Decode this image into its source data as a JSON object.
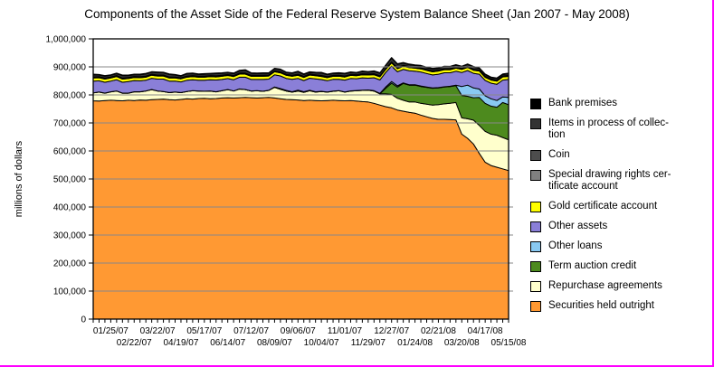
{
  "page": {
    "background": "#ffffff",
    "frame_border_color": "#ff00ff"
  },
  "chart_data": {
    "type": "area",
    "stacked": true,
    "title": "Components of the Asset Side of the Federal Reserve System Balance Sheet (Jan 2007 - May 2008)",
    "ylabel": "millions of dollars",
    "ylim": [
      0,
      1000000
    ],
    "ytick_step": 100000,
    "grid": true,
    "legend_position": "right",
    "x_tick_label_start": 3,
    "x_tick_label_every": 4,
    "x": [
      "01/04/07",
      "01/11/07",
      "01/18/07",
      "01/25/07",
      "02/01/07",
      "02/08/07",
      "02/15/07",
      "02/22/07",
      "03/01/07",
      "03/08/07",
      "03/15/07",
      "03/22/07",
      "03/29/07",
      "04/05/07",
      "04/12/07",
      "04/19/07",
      "04/26/07",
      "05/03/07",
      "05/10/07",
      "05/17/07",
      "05/24/07",
      "05/31/07",
      "06/07/07",
      "06/14/07",
      "06/21/07",
      "06/28/07",
      "07/05/07",
      "07/12/07",
      "07/19/07",
      "07/26/07",
      "08/02/07",
      "08/09/07",
      "08/16/07",
      "08/23/07",
      "08/30/07",
      "09/06/07",
      "09/13/07",
      "09/20/07",
      "09/27/07",
      "10/04/07",
      "10/11/07",
      "10/18/07",
      "10/25/07",
      "11/01/07",
      "11/08/07",
      "11/15/07",
      "11/22/07",
      "11/29/07",
      "12/06/07",
      "12/13/07",
      "12/20/07",
      "12/27/07",
      "01/03/08",
      "01/10/08",
      "01/17/08",
      "01/24/08",
      "01/31/08",
      "02/07/08",
      "02/14/08",
      "02/21/08",
      "02/28/08",
      "03/06/08",
      "03/13/08",
      "03/20/08",
      "03/27/08",
      "04/03/08",
      "04/10/08",
      "04/17/08",
      "04/24/08",
      "05/01/08",
      "05/08/08",
      "05/15/08"
    ],
    "series": [
      {
        "key": "securities_held_outright",
        "label": "Securities held outright",
        "legend_lines": [
          "Securities held outright"
        ],
        "color": "#ff9933",
        "values": [
          779000,
          778000,
          780000,
          781000,
          780000,
          779000,
          781000,
          780000,
          782000,
          781000,
          783000,
          784000,
          785000,
          783000,
          782000,
          784000,
          786000,
          785000,
          787000,
          788000,
          786000,
          787000,
          789000,
          790000,
          789000,
          790000,
          791000,
          790000,
          789000,
          790000,
          791000,
          789000,
          786000,
          784000,
          783000,
          782000,
          780000,
          781000,
          780000,
          779000,
          780000,
          781000,
          780000,
          779000,
          780000,
          778000,
          776000,
          775000,
          770000,
          764000,
          758000,
          754000,
          746000,
          742000,
          738000,
          735000,
          728000,
          722000,
          716000,
          713000,
          713000,
          712000,
          711000,
          660000,
          645000,
          625000,
          591000,
          560000,
          548000,
          542000,
          536000,
          530000
        ]
      },
      {
        "key": "repurchase_agreements",
        "label": "Repurchase agreements",
        "legend_lines": [
          "Repurchase agreements"
        ],
        "color": "#ffffcc",
        "values": [
          28000,
          32000,
          26000,
          30000,
          34000,
          27000,
          25000,
          31000,
          29000,
          33000,
          36000,
          30000,
          27000,
          25000,
          28000,
          24000,
          26000,
          30000,
          27000,
          25000,
          28000,
          24000,
          26000,
          29000,
          25000,
          31000,
          28000,
          24000,
          26000,
          23000,
          25000,
          38000,
          34000,
          30000,
          27000,
          32000,
          29000,
          34000,
          30000,
          33000,
          30000,
          32000,
          35000,
          31000,
          34000,
          37000,
          40000,
          42000,
          44000,
          40000,
          46000,
          48000,
          42000,
          39000,
          37000,
          40000,
          42000,
          45000,
          48000,
          52000,
          55000,
          58000,
          62000,
          58000,
          70000,
          85000,
          100000,
          110000,
          112000,
          114000,
          112000,
          110000
        ]
      },
      {
        "key": "term_auction_credit",
        "label": "Term auction credit",
        "legend_lines": [
          "Term auction credit"
        ],
        "color": "#4d8a1e",
        "values": [
          0,
          0,
          0,
          0,
          0,
          0,
          0,
          0,
          0,
          0,
          0,
          0,
          0,
          0,
          0,
          0,
          0,
          0,
          0,
          0,
          0,
          0,
          0,
          0,
          0,
          0,
          0,
          0,
          0,
          0,
          0,
          0,
          0,
          0,
          0,
          0,
          0,
          0,
          0,
          0,
          0,
          0,
          0,
          0,
          0,
          0,
          0,
          0,
          0,
          0,
          20000,
          40000,
          40000,
          60000,
          60000,
          60000,
          60000,
          60000,
          60000,
          60000,
          60000,
          60000,
          60000,
          80000,
          80000,
          80000,
          100000,
          100000,
          100000,
          100000,
          125000,
          125000
        ]
      },
      {
        "key": "other_loans",
        "label": "Other loans",
        "legend_lines": [
          "Other loans"
        ],
        "color": "#89c9f2",
        "values": [
          300,
          300,
          300,
          300,
          300,
          300,
          300,
          300,
          300,
          300,
          300,
          300,
          300,
          300,
          300,
          300,
          300,
          300,
          300,
          300,
          300,
          300,
          300,
          300,
          300,
          300,
          300,
          300,
          300,
          300,
          300,
          1500,
          2600,
          2000,
          1400,
          3100,
          2400,
          1800,
          1200,
          800,
          600,
          500,
          600,
          800,
          600,
          700,
          900,
          800,
          1200,
          1500,
          4000,
          5800,
          4500,
          2000,
          1500,
          1600,
          1800,
          1500,
          1200,
          1000,
          900,
          1100,
          1400,
          32000,
          40000,
          35000,
          30000,
          27000,
          26000,
          24000,
          20000,
          26000
        ]
      },
      {
        "key": "other_assets",
        "label": "Other assets",
        "legend_lines": [
          "Other assets"
        ],
        "color": "#8a7fd8",
        "values": [
          42000,
          40000,
          39000,
          38000,
          40000,
          39000,
          41000,
          40000,
          39000,
          38000,
          40000,
          42000,
          44000,
          41000,
          39000,
          38000,
          40000,
          39000,
          38000,
          39000,
          40000,
          42000,
          40000,
          39000,
          40000,
          42000,
          44000,
          41000,
          40000,
          42000,
          40000,
          43000,
          45000,
          43000,
          44000,
          42000,
          40000,
          43000,
          46000,
          42000,
          40000,
          42000,
          40000,
          42000,
          44000,
          42000,
          44000,
          42000,
          46000,
          48000,
          52000,
          55000,
          50000,
          48000,
          50000,
          48000,
          50000,
          48000,
          46000,
          48000,
          50000,
          48000,
          50000,
          50000,
          52000,
          52000,
          53000,
          55000,
          56000,
          58000,
          60000,
          64000
        ]
      },
      {
        "key": "gold_certificate_account",
        "label": "Gold certificate account",
        "legend_lines": [
          "Gold certificate account"
        ],
        "color": "#ffff00",
        "constant": 11037
      },
      {
        "key": "special_drawing_rights",
        "label": "Special drawing rights certificate account",
        "legend_lines": [
          "Special drawing rights cer-",
          "tificate account"
        ],
        "color": "#808080",
        "constant": 2200
      },
      {
        "key": "coin",
        "label": "Coin",
        "legend_lines": [
          "Coin"
        ],
        "color": "#4d4d4d",
        "constant": 1400
      },
      {
        "key": "items_in_process_of_collection",
        "label": "Items in process of collection",
        "legend_lines": [
          "Items in process of collec-",
          "tion"
        ],
        "color": "#333333",
        "values": [
          8000,
          6000,
          7000,
          6000,
          7000,
          9000,
          7000,
          6000,
          7000,
          8000,
          7000,
          9000,
          8000,
          9000,
          7000,
          6000,
          8000,
          7000,
          6000,
          7000,
          6000,
          8000,
          7000,
          6000,
          7000,
          8000,
          10000,
          7000,
          6000,
          7000,
          6000,
          7000,
          8000,
          6000,
          7000,
          9000,
          7000,
          6000,
          7000,
          9000,
          7000,
          6000,
          7000,
          8000,
          7000,
          6000,
          8000,
          7000,
          8000,
          9000,
          10000,
          14000,
          12000,
          8000,
          7000,
          6000,
          7000,
          6000,
          7000,
          6000,
          7000,
          6000,
          7000,
          6000,
          7000,
          8000,
          6000,
          6000,
          5000,
          6000,
          5000,
          6000
        ]
      },
      {
        "key": "bank_premises",
        "label": "Bank premises",
        "legend_lines": [
          "Bank premises"
        ],
        "color": "#000000",
        "constant": 2100
      }
    ]
  }
}
